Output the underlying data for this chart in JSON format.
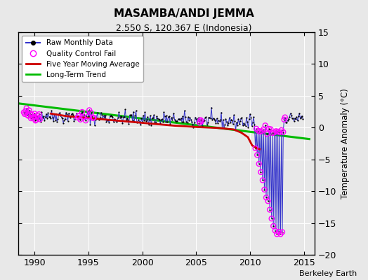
{
  "title": "MASAMBA/ANDI JEMMA",
  "subtitle": "2.550 S, 120.367 E (Indonesia)",
  "ylabel": "Temperature Anomaly (°C)",
  "credit": "Berkeley Earth",
  "xlim": [
    1988.5,
    2016.0
  ],
  "ylim": [
    -20,
    15
  ],
  "yticks": [
    -20,
    -15,
    -10,
    -5,
    0,
    5,
    10,
    15
  ],
  "xticks": [
    1990,
    1995,
    2000,
    2005,
    2010,
    2015
  ],
  "bg_color": "#e8e8e8",
  "raw_color": "#3333cc",
  "raw_dot_color": "#000000",
  "qc_fail_color": "#ff00ff",
  "moving_avg_color": "#cc0000",
  "trend_color": "#00bb00",
  "trend_x": [
    1988.5,
    2015.5
  ],
  "trend_y": [
    3.8,
    -1.8
  ],
  "moving_avg_x": [
    1991.5,
    1993.0,
    1995.0,
    1997.0,
    1999.0,
    2001.0,
    2003.0,
    2005.0,
    2007.0,
    2008.5,
    2009.2,
    2009.8,
    2010.2,
    2010.6,
    2010.9
  ],
  "moving_avg_y": [
    2.2,
    1.8,
    1.5,
    1.2,
    0.9,
    0.6,
    0.3,
    0.1,
    -0.05,
    -0.3,
    -0.8,
    -1.5,
    -2.8,
    -3.2,
    -3.4
  ]
}
